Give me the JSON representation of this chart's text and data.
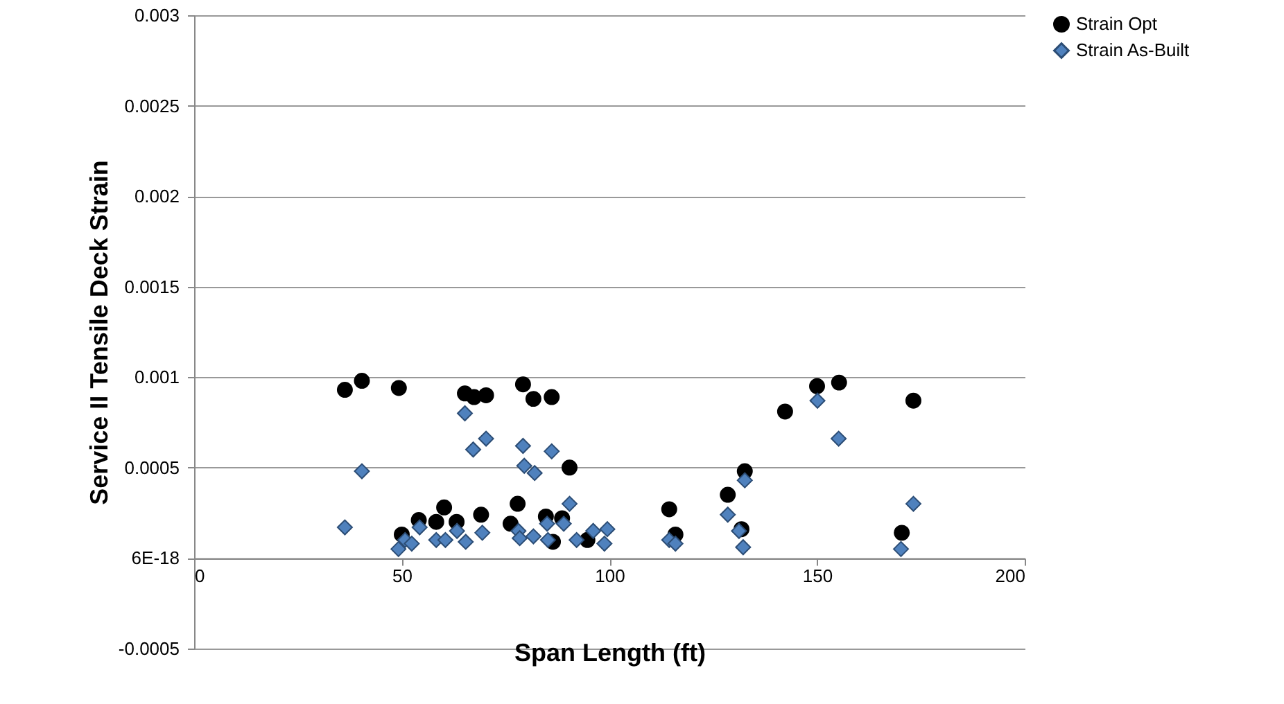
{
  "chart_data": {
    "type": "scatter",
    "xlabel": "Span Length (ft)",
    "ylabel": "Service II Tensile Deck Strain",
    "xlim": [
      0,
      200
    ],
    "xticks": [
      0,
      50,
      100,
      150,
      200
    ],
    "ylim": [
      -0.0005,
      0.003
    ],
    "yticks": [
      {
        "value": -0.0005,
        "label": "-0.0005"
      },
      {
        "value": 0,
        "label": "6E-18"
      },
      0.0005,
      {
        "value": 0.001,
        "label": "0.001"
      },
      0.0015,
      {
        "value": 0.002,
        "label": "0.002"
      },
      0.0025,
      {
        "value": 0.003,
        "label": "0.003"
      }
    ],
    "grid": "y",
    "legend": "right",
    "series": [
      {
        "name": "Strain Opt",
        "color": "#000000",
        "marker": "circle",
        "x": [
          36.3,
          40.4,
          49.3,
          65.2,
          67.4,
          70.3,
          79.2,
          81.7,
          86.1,
          90.4,
          60.2,
          69.1,
          77.9,
          54.1,
          58.3,
          63.2,
          50,
          84.7,
          88.6,
          76.2,
          86.4,
          94.7,
          114.4,
          115.9,
          128.5,
          132.6,
          131.8,
          142.3,
          150,
          155.3,
          173.2,
          170.4
        ],
        "values": [
          0.00093,
          0.00098,
          0.00094,
          0.00091,
          0.00089,
          0.0009,
          0.00096,
          0.00088,
          0.00089,
          0.0005,
          0.00028,
          0.00024,
          0.0003,
          0.00021,
          0.0002,
          0.0002,
          0.00013,
          0.00023,
          0.00022,
          0.00019,
          9e-05,
          0.0001,
          0.00027,
          0.00013,
          0.00035,
          0.00048,
          0.00016,
          0.00081,
          0.00095,
          0.00097,
          0.00087,
          0.00014
        ]
      },
      {
        "name": "Strain As-Built",
        "color": "#4f81bd",
        "marker": "diamond",
        "x": [
          36.3,
          40.4,
          65.2,
          67.2,
          70.3,
          79.2,
          86.1,
          79.5,
          82,
          90.4,
          49.2,
          50.8,
          52.4,
          54.3,
          58.3,
          60.5,
          63.3,
          65.4,
          69.4,
          78.1,
          78.4,
          81.7,
          85,
          85.2,
          89,
          92.1,
          96.1,
          98.8,
          99.5,
          114.4,
          115.9,
          128.5,
          132.6,
          131.2,
          132.2,
          150.1,
          155.2,
          173.2,
          170.2
        ],
        "values": [
          0.00017,
          0.00048,
          0.0008,
          0.0006,
          0.00066,
          0.00062,
          0.00059,
          0.00051,
          0.00047,
          0.0003,
          5e-05,
          0.0001,
          8e-05,
          0.00017,
          0.0001,
          0.0001,
          0.00015,
          9e-05,
          0.00014,
          0.00015,
          0.00011,
          0.00012,
          0.00019,
          0.0001,
          0.00019,
          0.0001,
          0.00015,
          8e-05,
          0.00016,
          0.0001,
          8e-05,
          0.00024,
          0.00043,
          0.00015,
          6e-05,
          0.00087,
          0.00066,
          0.0003,
          5e-05
        ]
      }
    ]
  }
}
